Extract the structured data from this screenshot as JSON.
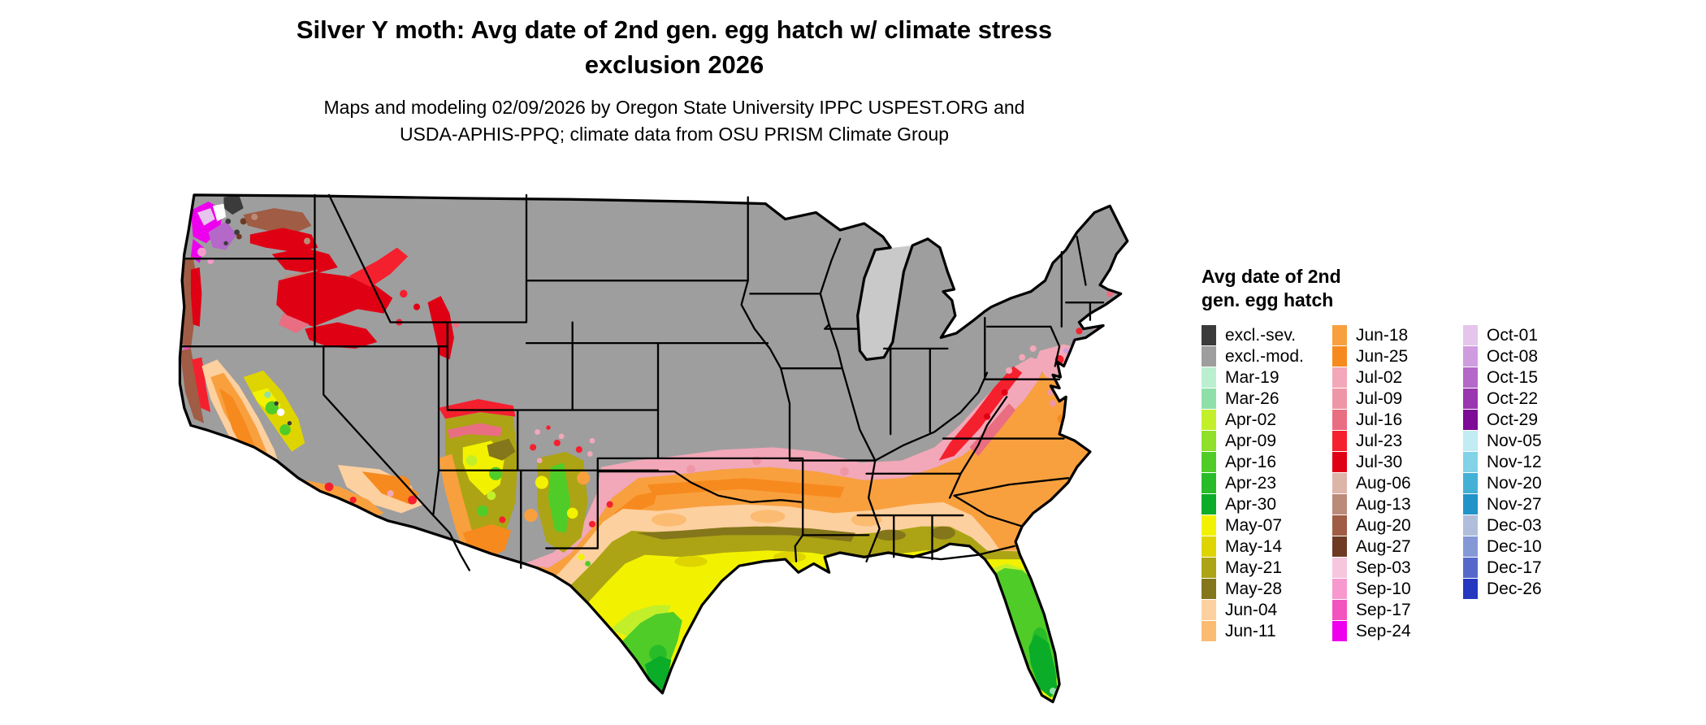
{
  "title": {
    "line1": "Silver Y moth: Avg date of 2nd gen. egg hatch w/ climate stress",
    "line2": "exclusion 2026"
  },
  "subtitle": {
    "line1": "Maps and modeling 02/09/2026 by Oregon State University IPPC USPEST.ORG and",
    "line2": "USDA-APHIS-PPQ; climate data from OSU PRISM Climate Group"
  },
  "legend": {
    "title_line1": "Avg date of 2nd",
    "title_line2": "gen. egg hatch",
    "columns": [
      [
        {
          "label": "excl.-sev.",
          "color": "#3b3b3b"
        },
        {
          "label": "excl.-mod.",
          "color": "#9e9e9e"
        },
        {
          "label": "Mar-19",
          "color": "#baf0d0"
        },
        {
          "label": "Mar-26",
          "color": "#8fe0a8"
        },
        {
          "label": "Apr-02",
          "color": "#c3ef2a"
        },
        {
          "label": "Apr-09",
          "color": "#8fe02a"
        },
        {
          "label": "Apr-16",
          "color": "#50cc28"
        },
        {
          "label": "Apr-23",
          "color": "#28bc28"
        },
        {
          "label": "Apr-30",
          "color": "#0aac28"
        },
        {
          "label": "May-07",
          "color": "#f2f200"
        },
        {
          "label": "May-14",
          "color": "#ded400"
        },
        {
          "label": "May-21",
          "color": "#aca414"
        },
        {
          "label": "May-28",
          "color": "#84761a"
        },
        {
          "label": "Jun-04",
          "color": "#fdd0a0"
        },
        {
          "label": "Jun-11",
          "color": "#fbbc72"
        }
      ],
      [
        {
          "label": "Jun-18",
          "color": "#f9a03e"
        },
        {
          "label": "Jun-25",
          "color": "#f78a1e"
        },
        {
          "label": "Jul-02",
          "color": "#f2a8b8"
        },
        {
          "label": "Jul-09",
          "color": "#ef96a6"
        },
        {
          "label": "Jul-16",
          "color": "#e96e82"
        },
        {
          "label": "Jul-23",
          "color": "#f5202e"
        },
        {
          "label": "Jul-30",
          "color": "#e00014"
        },
        {
          "label": "Aug-06",
          "color": "#ddb4a8"
        },
        {
          "label": "Aug-13",
          "color": "#bc8a78"
        },
        {
          "label": "Aug-20",
          "color": "#a05c44"
        },
        {
          "label": "Aug-27",
          "color": "#6e3a24"
        },
        {
          "label": "Sep-03",
          "color": "#f6c6de"
        },
        {
          "label": "Sep-10",
          "color": "#f799cf"
        },
        {
          "label": "Sep-17",
          "color": "#f353be"
        },
        {
          "label": "Sep-24",
          "color": "#ee00ee"
        }
      ],
      [
        {
          "label": "Oct-01",
          "color": "#e5c5ec"
        },
        {
          "label": "Oct-08",
          "color": "#cf9cdf"
        },
        {
          "label": "Oct-15",
          "color": "#b468c8"
        },
        {
          "label": "Oct-22",
          "color": "#9a36b0"
        },
        {
          "label": "Oct-29",
          "color": "#7d0b96"
        },
        {
          "label": "Nov-05",
          "color": "#c2ecf4"
        },
        {
          "label": "Nov-12",
          "color": "#82d2e8"
        },
        {
          "label": "Nov-20",
          "color": "#43b0d6"
        },
        {
          "label": "Nov-27",
          "color": "#2293c8"
        },
        {
          "label": "Dec-03",
          "color": "#b0bedb"
        },
        {
          "label": "Dec-10",
          "color": "#8498d6"
        },
        {
          "label": "Dec-17",
          "color": "#5468cc"
        },
        {
          "label": "Dec-26",
          "color": "#2438c0"
        }
      ]
    ]
  },
  "chart_data": {
    "type": "choropleth-map",
    "region": "Contiguous United States",
    "variable": "Average date of 2nd generation egg hatch (weekly date classes), with climate stress exclusion shown in gray",
    "classes_order": [
      "excl.-sev.",
      "excl.-mod.",
      "Mar-19",
      "Mar-26",
      "Apr-02",
      "Apr-09",
      "Apr-16",
      "Apr-23",
      "Apr-30",
      "May-07",
      "May-14",
      "May-21",
      "May-28",
      "Jun-04",
      "Jun-11",
      "Jun-18",
      "Jun-25",
      "Jul-02",
      "Jul-09",
      "Jul-16",
      "Jul-23",
      "Jul-30",
      "Aug-06",
      "Aug-13",
      "Aug-20",
      "Aug-27",
      "Sep-03",
      "Sep-10",
      "Sep-17",
      "Sep-24",
      "Oct-01",
      "Oct-08",
      "Oct-15",
      "Oct-22",
      "Oct-29",
      "Nov-05",
      "Nov-12",
      "Nov-20",
      "Nov-27",
      "Dec-03",
      "Dec-10",
      "Dec-17",
      "Dec-26"
    ],
    "visible_pattern": "Northern and interior states excluded (gray); southern band grades from Jul pinks at the gray boundary through Jun oranges and Jun/May tans-olives-yellows to Apr greens in south Texas and peninsular Florida; red Jul patches in western mountains and Appalachians; magenta/purple and brown classes along the Pacific Northwest coast; orange Central Valley of California"
  }
}
